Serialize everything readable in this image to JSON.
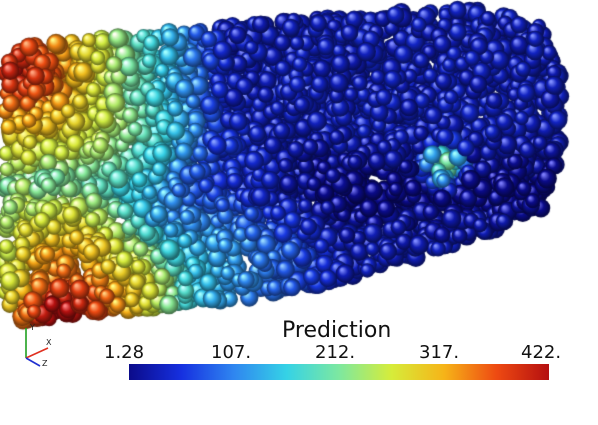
{
  "view": {
    "background": "#ffffff"
  },
  "render": {
    "subject": "point cloud of packed spheres colored by prediction value",
    "sphere_shading": "glossy"
  },
  "axes_triad": {
    "labels": [
      "Y",
      "X",
      "Z"
    ],
    "colors": {
      "x": "#e03020",
      "y": "#20a020",
      "z": "#2030d0"
    }
  },
  "legend": {
    "title": "Prediction",
    "ticks": [
      "1.28",
      "107.",
      "212.",
      "317.",
      "422."
    ],
    "range": [
      1.28,
      422
    ],
    "colormap": [
      "#0b0b8a",
      "#1630e0",
      "#2f86f0",
      "#35d2e6",
      "#7de8a0",
      "#d6ec3a",
      "#f6b418",
      "#ee4a12",
      "#b40f10"
    ]
  }
}
